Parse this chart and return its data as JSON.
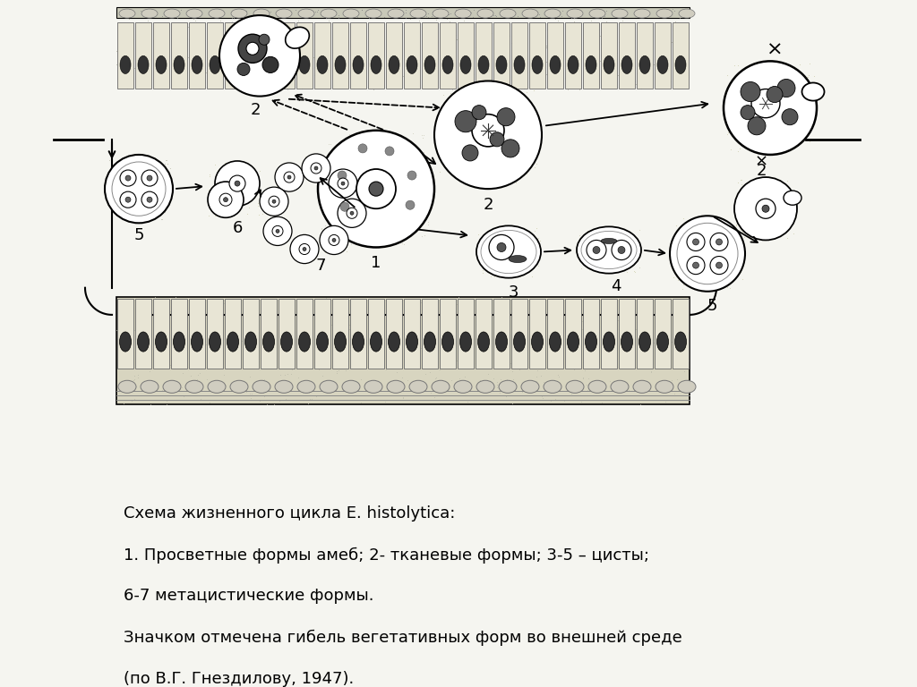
{
  "bg_color": "#f5f5f0",
  "caption_lines": [
    "Схема жизненного цикла E. histolytica:",
    "1. Просветные формы амеб; 2- тканевые формы; 3-5 – цисты;",
    "6-7 метацистические формы.",
    "Значком отмечена гибель вегетативных форм во внешней среде",
    "(по В.Г. Гнездилову, 1947)."
  ],
  "left_bar_color": "#8a8c3a",
  "right_bar_color": "#8a8c3a",
  "wall_fill": "#d8d5c0",
  "wall_ec": "#555555",
  "cell_fill": "#e8e5d5",
  "nucleus_dark": "#333333",
  "nucleus_mid": "#888888",
  "amoeba_fill": "#eeebe0",
  "stipple_color": "#aaaaaa"
}
